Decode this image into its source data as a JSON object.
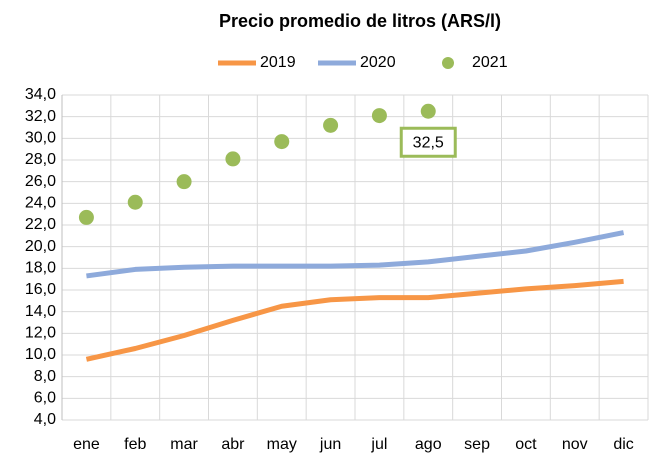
{
  "chart_data": {
    "type": "line",
    "title": "Precio promedio de litros (ARS/l)",
    "categories": [
      "ene",
      "feb",
      "mar",
      "abr",
      "may",
      "jun",
      "jul",
      "ago",
      "sep",
      "oct",
      "nov",
      "dic"
    ],
    "series": [
      {
        "name": "2019",
        "color": "#f79646",
        "mode": "line",
        "values": [
          9.6,
          10.6,
          11.8,
          13.2,
          14.5,
          15.1,
          15.3,
          15.3,
          15.7,
          16.1,
          16.4,
          16.8
        ]
      },
      {
        "name": "2020",
        "color": "#8eaadb",
        "mode": "line",
        "values": [
          17.3,
          17.9,
          18.1,
          18.2,
          18.2,
          18.2,
          18.3,
          18.6,
          19.1,
          19.6,
          20.4,
          21.3
        ]
      },
      {
        "name": "2021",
        "color": "#9bbb59",
        "mode": "markers",
        "values": [
          22.7,
          24.1,
          26.0,
          28.1,
          29.7,
          31.2,
          32.1,
          32.5,
          null,
          null,
          null,
          null
        ],
        "value_labels": [
          null,
          null,
          null,
          null,
          null,
          null,
          null,
          "32,5",
          null,
          null,
          null,
          null
        ]
      }
    ],
    "ylim": [
      4,
      34
    ],
    "yticks": [
      {
        "value": 4,
        "label": "4,0"
      },
      {
        "value": 6,
        "label": "6,0"
      },
      {
        "value": 8,
        "label": "8,0"
      },
      {
        "value": 10,
        "label": "10,0"
      },
      {
        "value": 12,
        "label": "12,0"
      },
      {
        "value": 14,
        "label": "14,0"
      },
      {
        "value": 16,
        "label": "16,0"
      },
      {
        "value": 18,
        "label": "18,0"
      },
      {
        "value": 20,
        "label": "20,0"
      },
      {
        "value": 22,
        "label": "22,0"
      },
      {
        "value": 24,
        "label": "24,0"
      },
      {
        "value": 26,
        "label": "26,0"
      },
      {
        "value": 28,
        "label": "28,0"
      },
      {
        "value": 30,
        "label": "30,0"
      },
      {
        "value": 32,
        "label": "32,0"
      },
      {
        "value": 34,
        "label": "34,0"
      }
    ],
    "grid": true,
    "legend": "top"
  }
}
